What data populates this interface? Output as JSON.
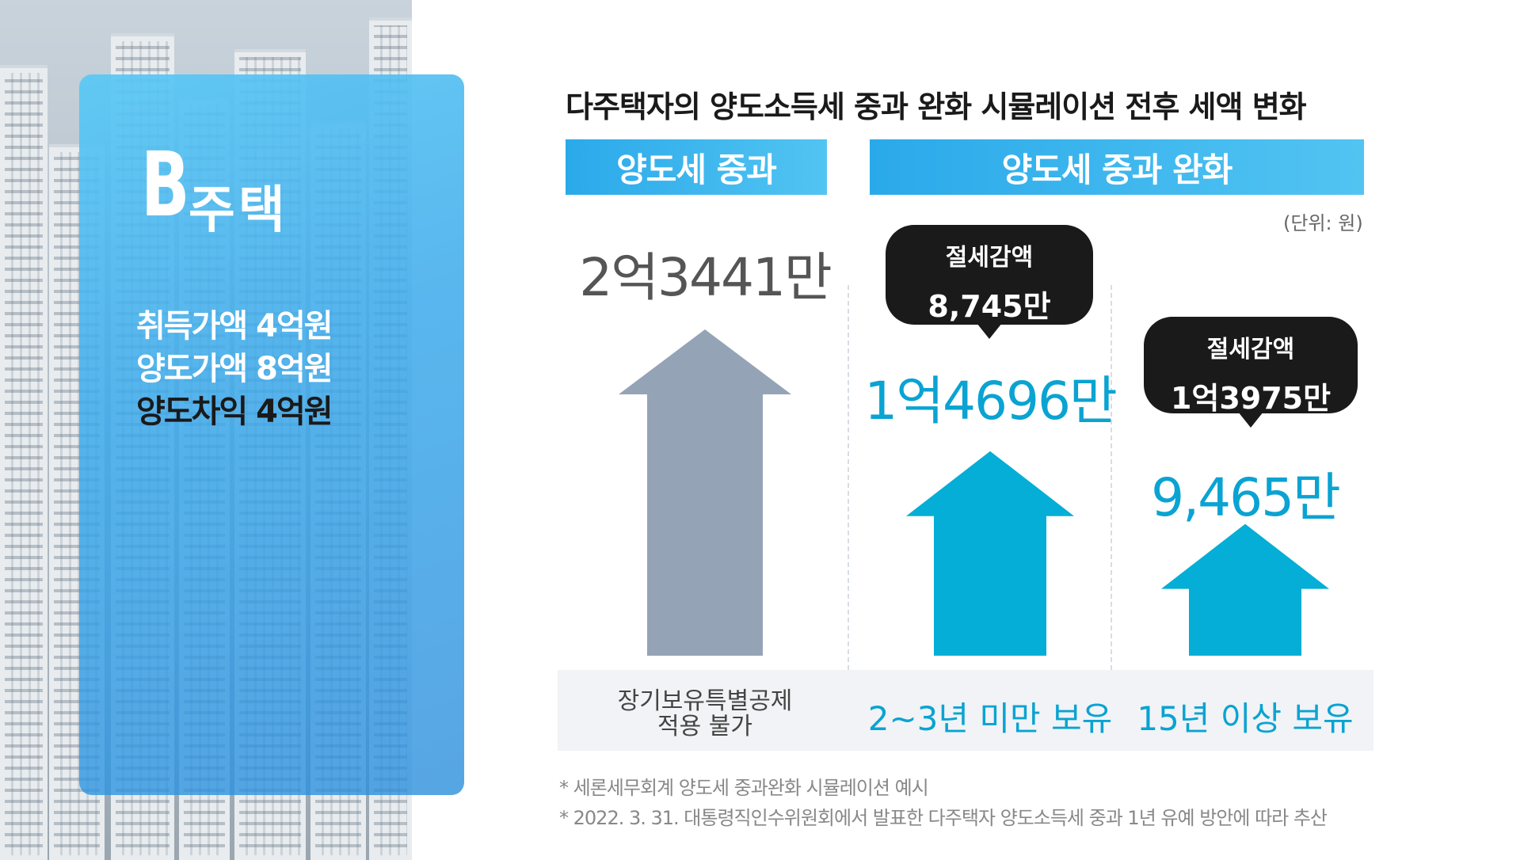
{
  "house": {
    "letter": "B",
    "word": "주택",
    "info": [
      "취득가액 4억원",
      "양도가액 8억원",
      "양도차익 4억원"
    ]
  },
  "chart_data": {
    "type": "bar",
    "title": "다주택자의 양도소득세 중과 완화 시뮬레이션 전후 세액 변화",
    "unit": "(단위: 원)",
    "groups": [
      "양도세 중과",
      "양도세 중과 완화"
    ],
    "categories": [
      "장기보유특별공제\n적용 불가",
      "2~3년 미만 보유",
      "15년 이상 보유"
    ],
    "values": [
      23441,
      14696,
      9465
    ],
    "value_labels": [
      "2억3441만",
      "1억4696만",
      "9,465만"
    ],
    "value_unit": "만원",
    "savings": [
      {
        "label": "절세감액",
        "value": "8,745만"
      },
      {
        "label": "절세감액",
        "value": "1억3975만"
      }
    ],
    "colors": {
      "before": "#95a3b6",
      "after": "#04aed6"
    }
  },
  "notes": [
    "* 세론세무회계 양도세 중과완화 시뮬레이션 예시",
    "* 2022. 3. 31. 대통령직인수위원회에서 발표한 다주택자 양도소득세 중과 1년 유예 방안에 따라 추산"
  ]
}
